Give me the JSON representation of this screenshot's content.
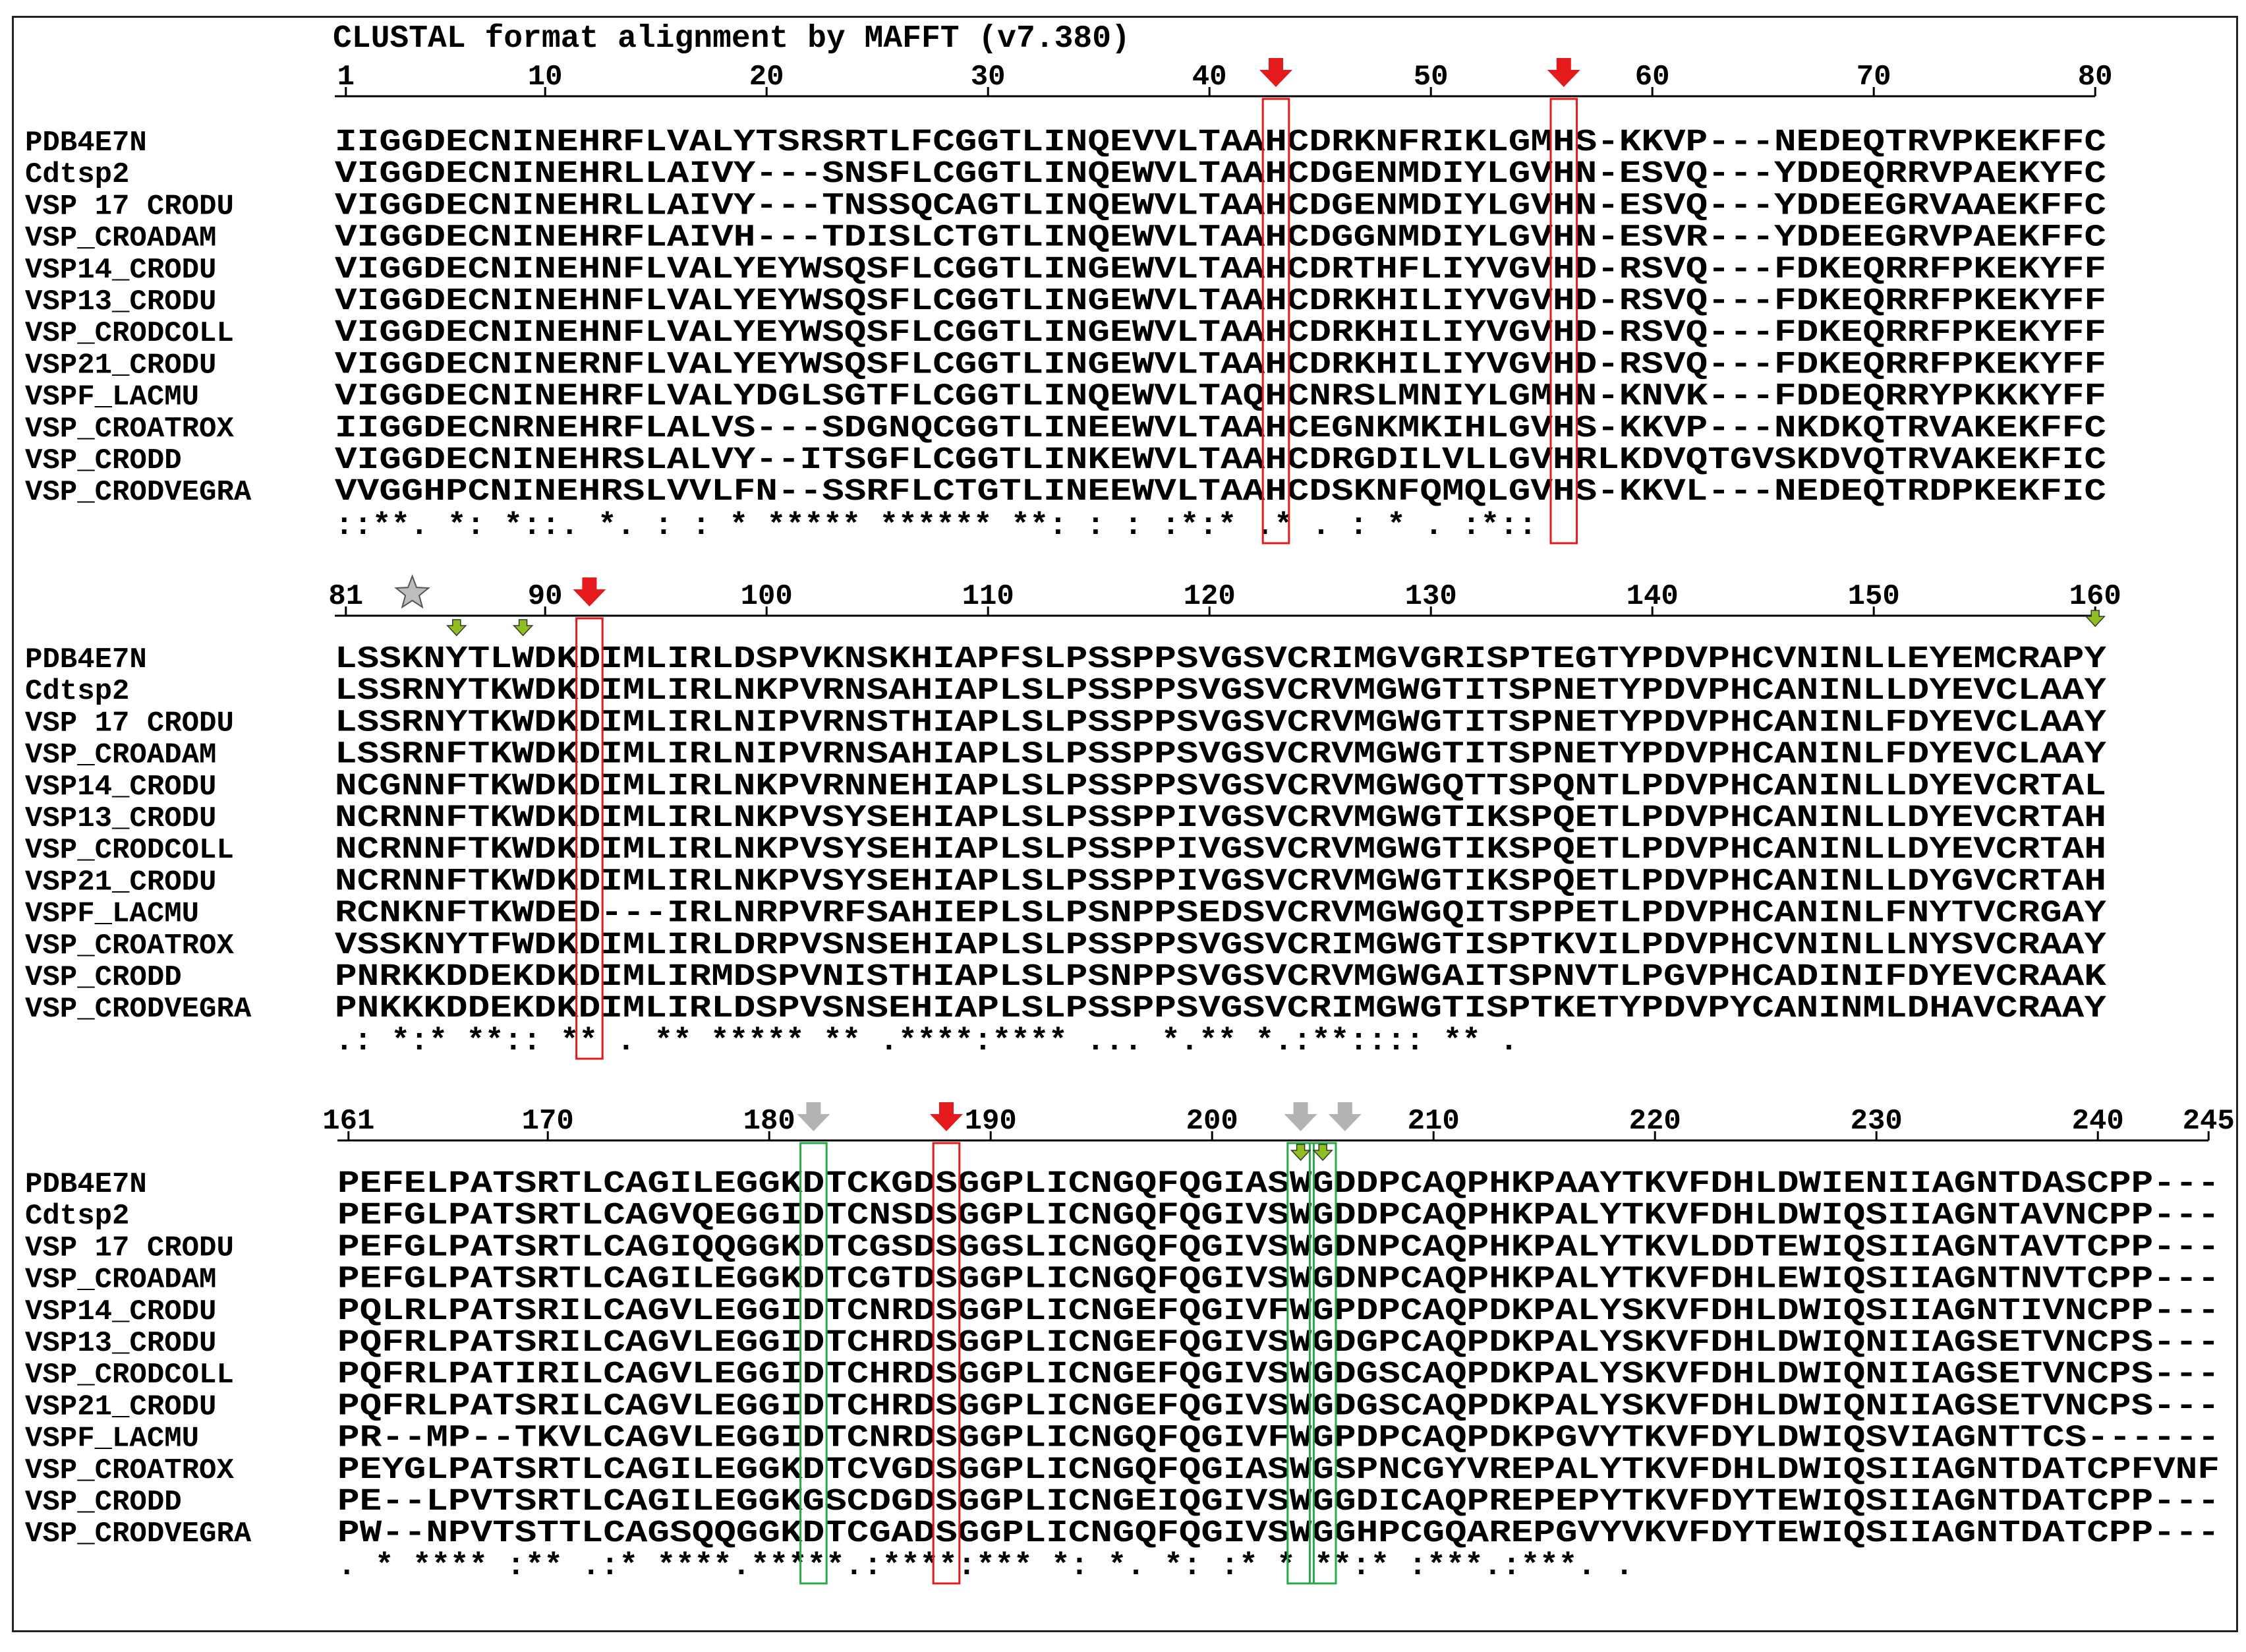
{
  "header": {
    "title": "CLUSTAL format alignment by MAFFT (v7.380)"
  },
  "colors": {
    "marker_red": "#e41a1c",
    "box_red": "#e41a1c",
    "box_green": "#2aa84a",
    "marker_yellow_green": "#8fbf1f",
    "marker_grey": "#b3b3b3",
    "star_grey": "#bdbdbd"
  },
  "sequence_names": [
    "PDB4E7N",
    "Cdtsp2",
    "VSP 17 CRODU",
    "VSP_CROADAM",
    "VSP14_CRODU",
    "VSP13_CRODU",
    "VSP_CRODCOLL",
    "VSP21_CRODU",
    "VSPF_LACMU",
    "VSP_CROATROX",
    "VSP_CRODD",
    "VSP_CRODVEGRA"
  ],
  "blocks": [
    {
      "ruler_labels": [
        "1",
        "10",
        "20",
        "30",
        "40",
        "50",
        "60",
        "70",
        "80"
      ],
      "ruler_positions": [
        1,
        10,
        20,
        30,
        40,
        50,
        60,
        70,
        80
      ],
      "sequences": [
        "IIGGDECNINEHRFLVALYTSRSRTLFCGGTLINQEVVLTAAHCDRKNFRIKLGMHS-KKVP---NEDEQTRVPKEKFFC",
        "VIGGDECNINEHRLLAIVY---SNSFLCGGTLINQEWVLTAAHCDGENMDIYLGVHN-ESVQ---YDDEQRRVPAEKYFC",
        "VIGGDECNINEHRLLAIVY---TNSSQCAGTLINQEWVLTAAHCDGENMDIYLGVHN-ESVQ---YDDEEGRVAAEKFFC",
        "VIGGDECNINEHRFLAIVH---TDISLCTGTLINQEWVLTAAHCDGGNMDIYLGVHN-ESVR---YDDEEGRVPAEKFFC",
        "VIGGDECNINEHNFLVALYEYWSQSFLCGGTLINGEWVLTAAHCDRTHFLIYVGVHD-RSVQ---FDKEQRRFPKEKYFF",
        "VIGGDECNINEHNFLVALYEYWSQSFLCGGTLINGEWVLTAAHCDRKHILIYVGVHD-RSVQ---FDKEQRRFPKEKYFF",
        "VIGGDECNINEHNFLVALYEYWSQSFLCGGTLINGEWVLTAAHCDRKHILIYVGVHD-RSVQ---FDKEQRRFPKEKYFF",
        "VIGGDECNINERNFLVALYEYWSQSFLCGGTLINGEWVLTAAHCDRKHILIYVGVHD-RSVQ---FDKEQRRFPKEKYFF",
        "VIGGDECNINEHRFLVALYDGLSGTFLCGGTLINQEWVLTAQHCNRSLMNIYLGMHN-KNVK---FDDEQRRYPKKKYFF",
        "IIGGDECNRNEHRFLALVS---SDGNQCGGTLINEEWVLTAAHCEGNKMKIHLGVHS-KKVP---NKDKQTRVAKEKFFC",
        "VIGGDECNINEHRSLALVY--ITSGFLCGGTLINKEWVLTAAHCDRGDILVLLGVHRLKDVQTGVSKDVQTRVAKEKFIC",
        "VVGGHPCNINEHRSLVVLFN--SSRFLCTGTLINEEWVLTAAHCDSKNFQMQLGVHS-KKVL---NEDEQTRDPKEKFIC"
      ],
      "consensus": "::**. *: *::. *. :      :     * ***** ****** **:   : : :*:*     .*     . : * . :*::"
    },
    {
      "ruler_labels": [
        "81",
        "90",
        "100",
        "110",
        "120",
        "130",
        "140",
        "150",
        "160"
      ],
      "ruler_positions": [
        81,
        90,
        100,
        110,
        120,
        130,
        140,
        150,
        160
      ],
      "sequences": [
        "LSSKNYTLWDKDIMLIRLDSPVKNSKHIAPFSLPSSPPSVGSVCRIMGVGRISPTEGTYPDVPHCVNINLLEYEMCRAPY",
        "LSSRNYTKWDKDIMLIRLNKPVRNSAHIAPLSLPSSPPSVGSVCRVMGWGTITSPNETYPDVPHCANINLLDYEVCLAAY",
        "LSSRNYTKWDKDIMLIRLNIPVRNSTHIAPLSLPSSPPSVGSVCRVMGWGTITSPNETYPDVPHCANINLFDYEVCLAAY",
        "LSSRNFTKWDKDIMLIRLNIPVRNSAHIAPLSLPSSPPSVGSVCRVMGWGTITSPNETYPDVPHCANINLFDYEVCLAAY",
        "NCGNNFTKWDKDIMLIRLNKPVRNNEHIAPLSLPSSPPSVGSVCRVMGWGQTTSPQNTLPDVPHCANINLLDYEVCRTAL",
        "NCRNNFTKWDKDIMLIRLNKPVSYSEHIAPLSLPSSPPIVGSVCRVMGWGTIKSPQETLPDVPHCANINLLDYEVCRTAH",
        "NCRNNFTKWDKDIMLIRLNKPVSYSEHIAPLSLPSSPPIVGSVCRVMGWGTIKSPQETLPDVPHCANINLLDYEVCRTAH",
        "NCRNNFTKWDKDIMLIRLNKPVSYSEHIAPLSLPSSPPIVGSVCRVMGWGTIKSPQETLPDVPHCANINLLDYGVCRTAH",
        "RCNKNFTKWDED---IRLNRPVRFSAHIEPLSLPSNPPSEDSVCRVMGWGQITSPPETLPDVPHCANINLFNYTVCRGAY",
        "VSSKNYTFWDKDIMLIRLDRPVSNSEHIAPLSLPSSPPSVGSVCRIMGWGTISPTKVILPDVPHCVNINLLNYSVCRAAY",
        "PNRKKDDEKDKDIMLIRMDSPVNISTHIAPLSLPSNPPSVGSVCRVMGWGAITSPNVTLPGVPHCADINIFDYEVCRAAK",
        "PNKKKDDEKDKDIMLIRLDSPVSNSEHIAPLSLPSSPPSVGSVCRIMGWGTISPTKETYPDVPYCANINMLDHAVCRAAY"
      ],
      "consensus": "  .:      *:*   **:: **   . **   ***** **   .****:****   ...     *.** *.:**:::: **   ."
    },
    {
      "ruler_labels": [
        "161",
        "170",
        "180",
        "190",
        "200",
        "210",
        "220",
        "230",
        "240",
        "245"
      ],
      "ruler_positions": [
        161,
        170,
        180,
        190,
        200,
        210,
        220,
        230,
        240,
        245
      ],
      "sequences": [
        "PEFELPATSRTLCAGILEGGKDTCKGDSGGPLICNGQFQGIASWGDDPCAQPHKPAAYTKVFDHLDWIENIIAGNTDASCPP---",
        "PEFGLPATSRTLCAGVQEGGIDTCNSDSGGPLICNGQFQGIVSWGDDPCAQPHKPALYTKVFDHLDWIQSIIAGNTAVNCPP---",
        "PEFGLPATSRTLCAGIQQGGKDTCGSDSGGSLICNGQFQGIVSWGDNPCAQPHKPALYTKVLDDTEWIQSIIAGNTAVTCPP---",
        "PEFGLPATSRTLCAGILEGGKDTCGTDSGGPLICNGQFQGIVSWGDNPCAQPHKPALYTKVFDHLEWIQSIIAGNTNVTCPP---",
        "PQLRLPATSRILCAGVLEGGIDTCNRDSGGPLICNGEFQGIVFWGPDPCAQPDKPALYSKVFDHLDWIQSIIAGNTIVNCPP---",
        "PQFRLPATSRILCAGVLEGGIDTCHRDSGGPLICNGEFQGIVSWGDGPCAQPDKPALYSKVFDHLDWIQNIIAGSETVNCPS---",
        "PQFRLPATIRILCAGVLEGGIDTCHRDSGGPLICNGEFQGIVSWGDGSCAQPDKPALYSKVFDHLDWIQNIIAGSETVNCPS---",
        "PQFRLPATSRILCAGVLEGGIDTCHRDSGGPLICNGEFQGIVSWGDGSCAQPDKPALYSKVFDHLDWIQNIIAGSETVNCPS---",
        "PR--MP--TKVLCAGVLEGGIDTCNRDSGGPLICNGQFQGIVFWGPDPCAQPDKPGVYTKVFDYLDWIQSVIAGNTTCS------",
        "PEYGLPATSRTLCAGILEGGKDTCVGDSGGPLICNGQFQGIASWGSPNCGYVREPALYTKVFDHLDWIQSIIAGNTDATCPFVNF",
        "PE--LPVTSRTLCAGILEGGKGSCDGDSGGPLICNGEIQGIVSWGGDICAQPREPEPYTKVFDYTEWIQSIIAGNTDATCPP---",
        "PW--NPVTSTTLCAGSQQGGKDTCGADSGGPLICNGQFQGIVSWGGHPCGQAREPGVYVKVFDYTEWIQSIIAGNTDATCPP---"
      ],
      "consensus": ".      *      ****    :**   .:*   ****.*****.:****:*** *:  *.    *:    :*  * **:*   :***.:***.   ."
    }
  ]
}
